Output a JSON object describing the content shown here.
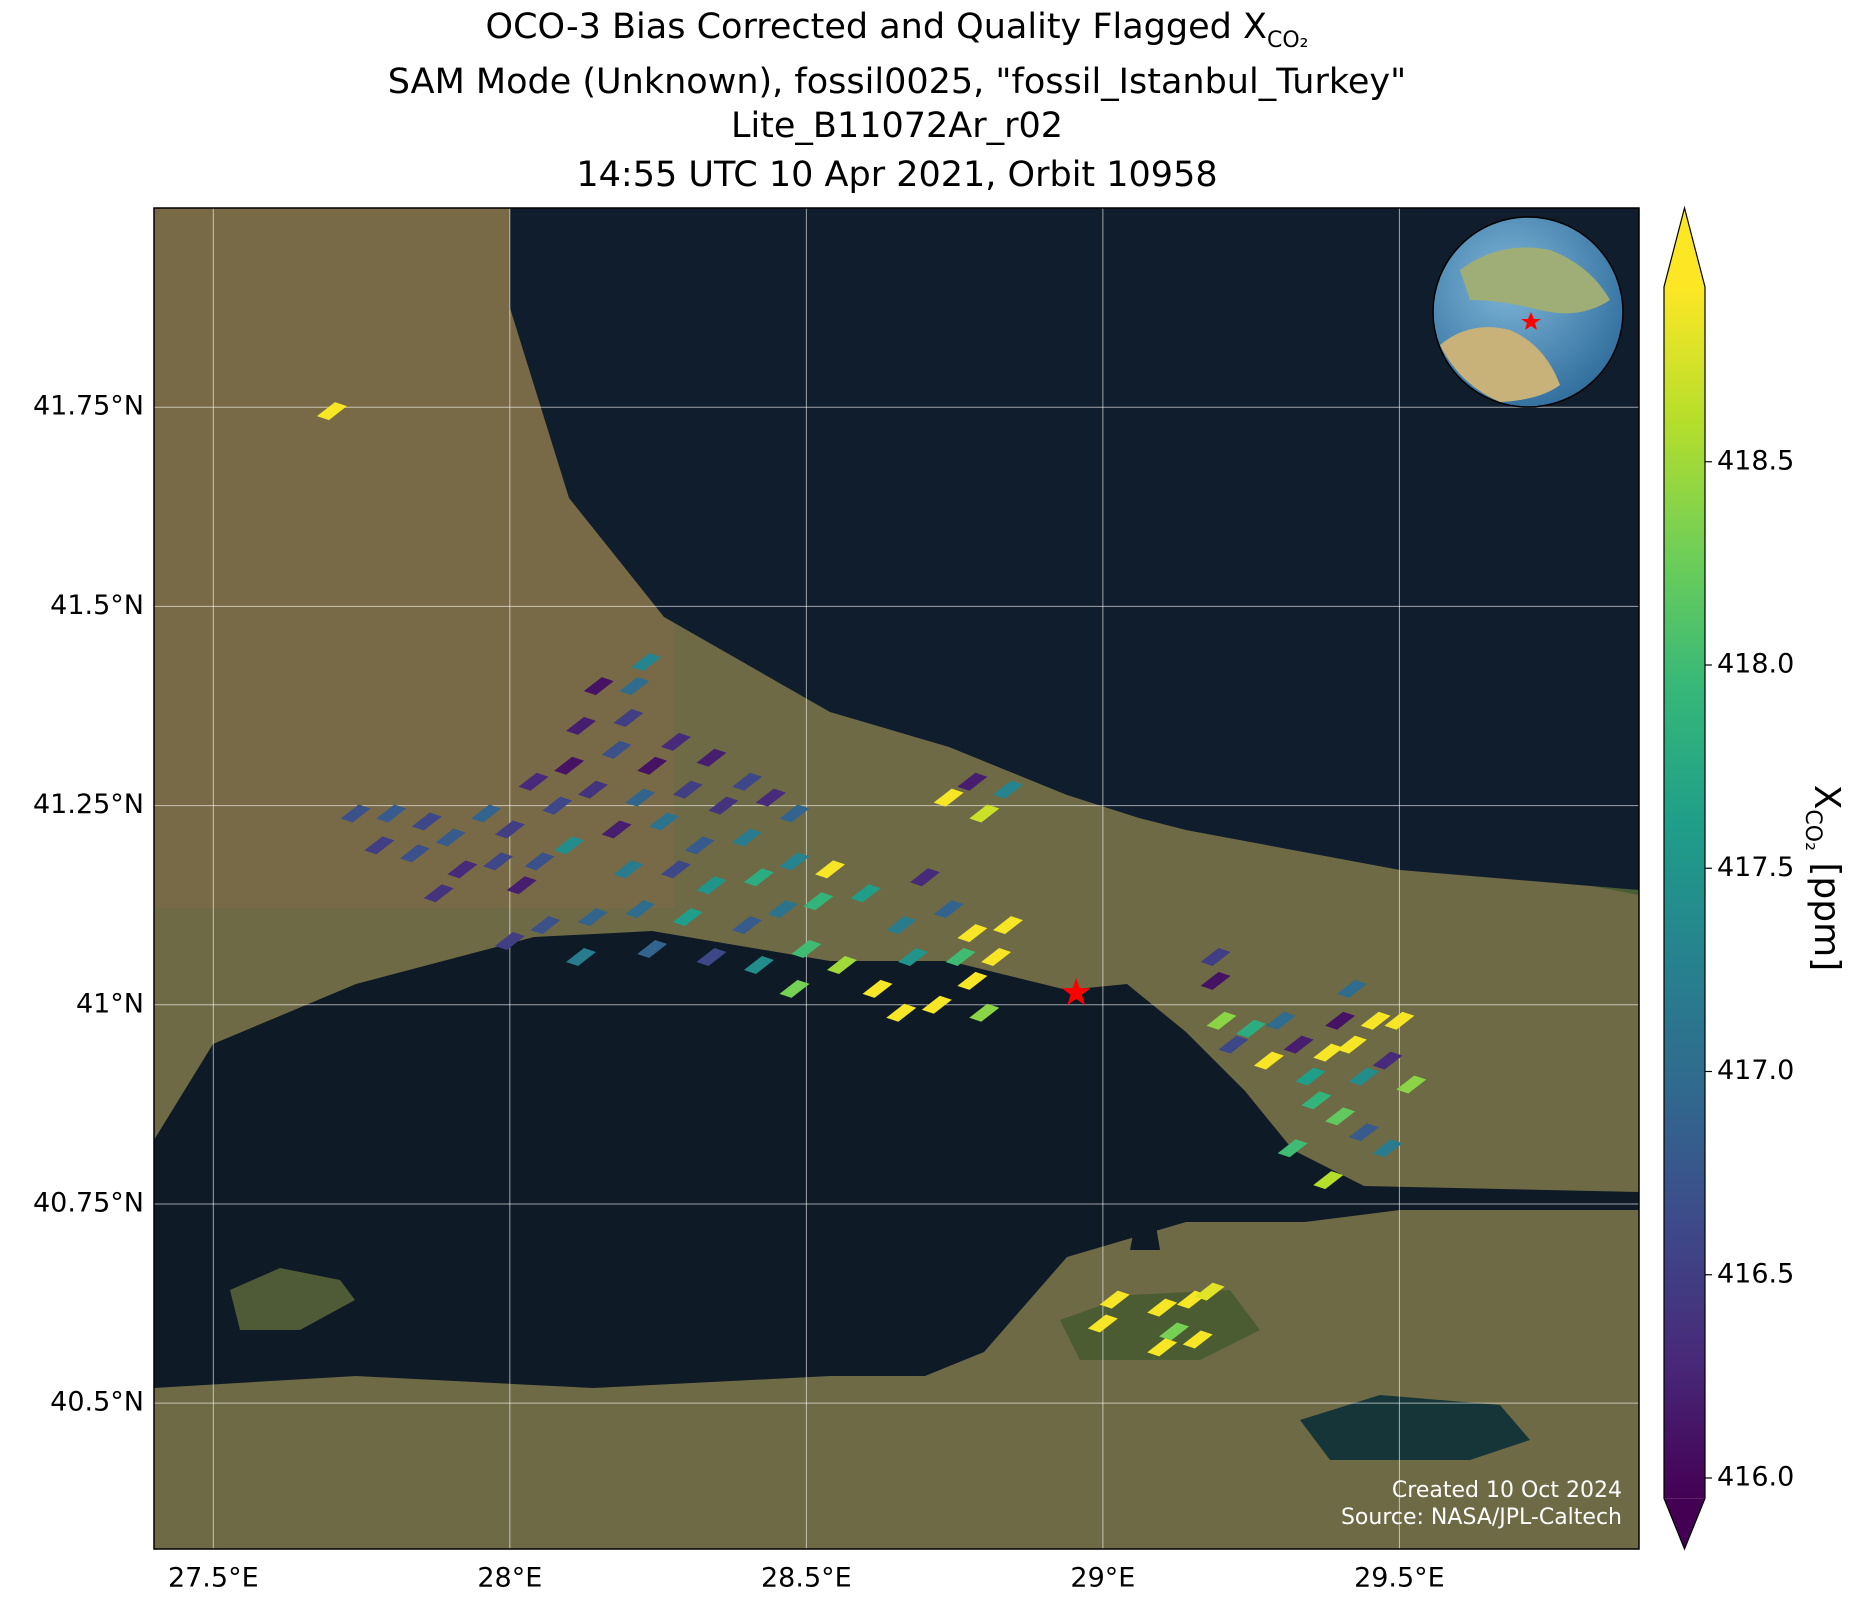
{
  "chart_data": {
    "type": "map",
    "title_line1": "OCO-3 Bias Corrected and Quality Flagged X",
    "title_line1_subscript": "CO₂",
    "title_line2": "SAM Mode (Unknown), fossil0025, \"fossil_Istanbul_Turkey\"",
    "title_line3": "Lite_B11072Ar_r02",
    "title_line4": "14:55 UTC 10 Apr 2021, Orbit 10958",
    "xlim": [
      27.4,
      29.904
    ],
    "ylim": [
      40.317,
      42.0
    ],
    "xticks": [
      {
        "value": 27.5,
        "label": "27.5°E"
      },
      {
        "value": 28,
        "label": "28°E"
      },
      {
        "value": 28.5,
        "label": "28.5°E"
      },
      {
        "value": 29,
        "label": "29°E"
      },
      {
        "value": 29.5,
        "label": "29.5°E"
      }
    ],
    "yticks": [
      {
        "value": 40.5,
        "label": "40.5°N"
      },
      {
        "value": 40.75,
        "label": "40.75°N"
      },
      {
        "value": 41,
        "label": "41°N"
      },
      {
        "value": 41.25,
        "label": "41.25°N"
      },
      {
        "value": 41.5,
        "label": "41.5°N"
      },
      {
        "value": 41.75,
        "label": "41.75°N"
      }
    ],
    "grid": true,
    "colormap": "viridis",
    "clim": [
      415.95,
      418.93
    ],
    "cticks": [
      {
        "value": 416,
        "label": "416.0"
      },
      {
        "value": 416.5,
        "label": "416.5"
      },
      {
        "value": 417,
        "label": "417.0"
      },
      {
        "value": 417.5,
        "label": "417.5"
      },
      {
        "value": 418,
        "label": "418.0"
      },
      {
        "value": 418.5,
        "label": "418.5"
      }
    ],
    "colorbar_label": "X",
    "colorbar_label_subscript": "CO₂",
    "colorbar_label_unit": " [ppm]",
    "site": {
      "lon": 28.955,
      "lat": 41.015,
      "color": "#ff0000"
    },
    "annotations": [
      "Created 10 Oct 2024",
      "Source: NASA/JPL-Caltech"
    ],
    "soundings": {
      "lon": [
        27.7,
        27.74,
        27.8,
        27.86,
        27.78,
        27.84,
        27.9,
        27.96,
        27.92,
        27.98,
        28.02,
        27.88,
        28.0,
        28.04,
        28.08,
        28.1,
        28.14,
        28.18,
        28.12,
        28.2,
        28.24,
        28.28,
        28.22,
        28.3,
        28.34,
        28.26,
        28.36,
        28.4,
        28.44,
        28.48,
        28.32,
        28.4,
        28.15,
        28.21,
        28.23,
        28.18,
        28.1,
        28.05,
        28.2,
        28.28,
        28.34,
        28.42,
        28.48,
        28.52,
        28.46,
        28.4,
        28.3,
        28.22,
        28.14,
        28.06,
        28.0,
        28.12,
        28.24,
        28.34,
        28.42,
        28.5,
        28.56,
        28.48,
        28.6,
        28.66,
        28.7,
        28.74,
        28.68,
        28.62,
        28.66,
        28.72,
        28.78,
        28.82,
        28.78,
        28.84,
        28.8,
        28.76,
        28.74,
        28.78,
        28.8,
        28.84,
        28.54,
        29.19,
        29.19,
        29.2,
        29.22,
        29.25,
        29.28,
        29.3,
        29.33,
        29.35,
        29.38,
        29.4,
        29.42,
        29.44,
        29.36,
        29.4,
        29.44,
        29.48,
        29.46,
        29.42,
        29.48,
        29.5,
        29.52,
        29.32,
        29.38,
        29.02,
        29.0,
        29.1,
        29.15,
        29.18,
        29.12,
        29.16,
        29.1
      ],
      "lat": [
        41.745,
        41.24,
        41.24,
        41.23,
        41.2,
        41.19,
        41.21,
        41.24,
        41.17,
        41.18,
        41.15,
        41.14,
        41.22,
        41.28,
        41.25,
        41.3,
        41.27,
        41.32,
        41.35,
        41.36,
        41.3,
        41.33,
        41.26,
        41.27,
        41.31,
        41.23,
        41.25,
        41.28,
        41.26,
        41.24,
        41.2,
        41.21,
        41.4,
        41.4,
        41.43,
        41.22,
        41.2,
        41.18,
        41.17,
        41.17,
        41.15,
        41.16,
        41.18,
        41.13,
        41.12,
        41.1,
        41.11,
        41.12,
        41.11,
        41.1,
        41.08,
        41.06,
        41.07,
        41.06,
        41.05,
        41.07,
        41.05,
        41.02,
        41.14,
        41.1,
        41.16,
        41.12,
        41.06,
        41.02,
        40.99,
        41.0,
        41.09,
        41.06,
        41.03,
        41.1,
        40.99,
        41.06,
        41.26,
        41.28,
        41.24,
        41.27,
        41.17,
        41.06,
        41.03,
        40.98,
        40.95,
        40.97,
        40.93,
        40.98,
        40.95,
        40.91,
        40.94,
        40.98,
        40.95,
        40.91,
        40.88,
        40.86,
        40.84,
        40.82,
        40.98,
        41.02,
        40.93,
        40.98,
        40.9,
        40.82,
        40.78,
        40.63,
        40.6,
        40.62,
        40.63,
        40.64,
        40.59,
        40.58,
        40.57
      ],
      "xco2": [
        418.9,
        416.7,
        416.8,
        416.6,
        416.5,
        416.7,
        416.8,
        416.9,
        416.3,
        416.6,
        416.2,
        416.4,
        416.5,
        416.3,
        416.6,
        416.1,
        416.4,
        416.7,
        416.2,
        416.5,
        416.1,
        416.3,
        416.9,
        416.5,
        416.2,
        417.1,
        416.4,
        416.6,
        416.3,
        416.9,
        416.8,
        417.2,
        416.1,
        417.0,
        417.3,
        416.2,
        417.4,
        416.7,
        417.2,
        416.6,
        417.5,
        417.8,
        417.3,
        417.9,
        417.1,
        416.8,
        417.6,
        417.0,
        416.9,
        416.7,
        416.5,
        417.2,
        416.9,
        416.6,
        417.4,
        418.0,
        418.5,
        418.3,
        417.6,
        417.2,
        416.3,
        416.9,
        417.5,
        418.9,
        418.9,
        418.9,
        418.9,
        418.9,
        418.9,
        418.9,
        418.4,
        418.0,
        418.9,
        416.2,
        418.7,
        417.3,
        418.9,
        416.5,
        416.1,
        418.4,
        416.6,
        417.8,
        418.9,
        417.0,
        416.2,
        417.6,
        418.9,
        416.1,
        418.9,
        417.4,
        417.9,
        418.2,
        416.8,
        417.2,
        418.9,
        417.0,
        416.3,
        418.9,
        418.4,
        418.0,
        418.6,
        418.9,
        418.9,
        418.9,
        418.9,
        418.8,
        418.3,
        418.9,
        418.9
      ]
    }
  }
}
